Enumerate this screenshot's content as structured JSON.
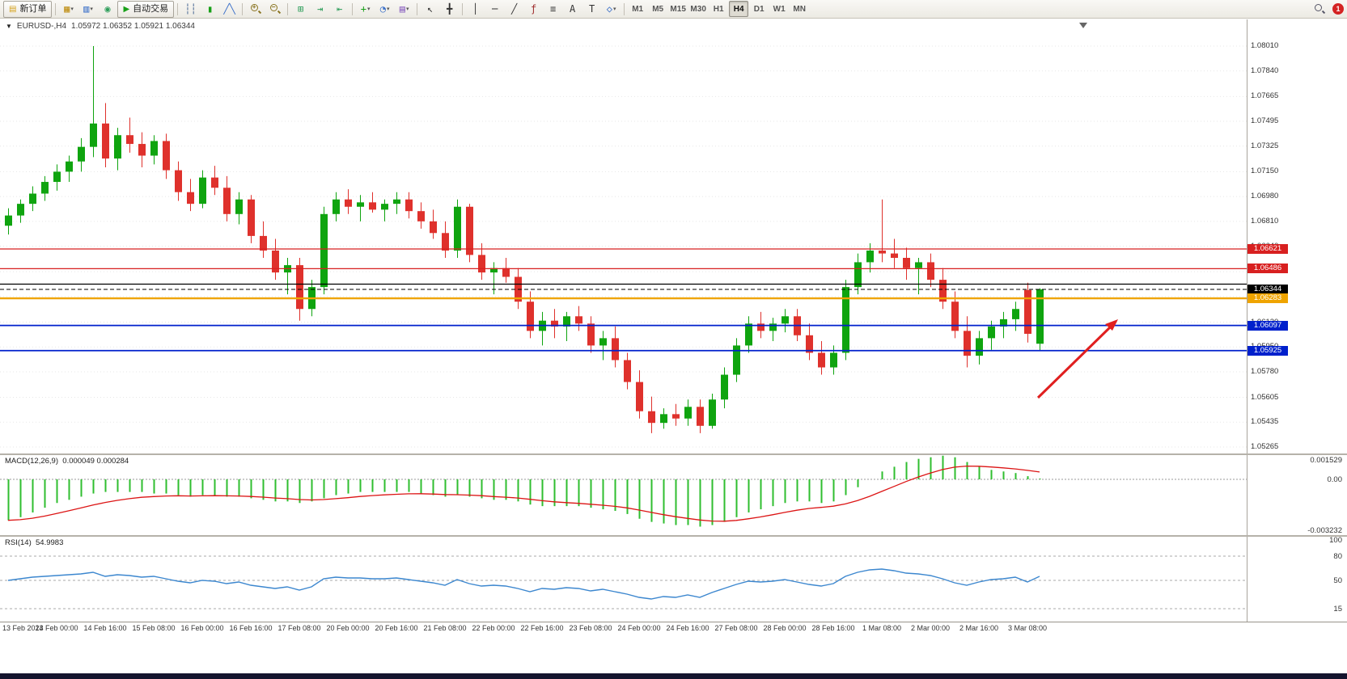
{
  "colors": {
    "up": "#0fa40f",
    "down": "#df312c",
    "macd_hist": "#2fbe2f",
    "macd_signal": "#dc1414",
    "rsi_line": "#3c87cf",
    "arrow": "#e01f1f",
    "lines": {
      "red": "#d82020",
      "black": "#000000",
      "orange": "#efa400",
      "blue": "#0020cc"
    }
  },
  "toolbar": {
    "items": [
      {
        "t": "button",
        "name": "new-order-button",
        "label": "新订单",
        "glyph": "▤",
        "color": "#d4a017"
      },
      {
        "t": "sep"
      },
      {
        "t": "icon",
        "name": "new-chart-icon",
        "glyph": "▦",
        "color": "#c09018",
        "caret": true
      },
      {
        "t": "icon",
        "name": "profiles-icon",
        "glyph": "▥",
        "color": "#3a6fc8",
        "caret": true
      },
      {
        "t": "icon",
        "name": "data-window-icon",
        "glyph": "◉",
        "color": "#2e9e5b"
      },
      {
        "t": "button",
        "name": "auto-trading-button",
        "label": "自动交易",
        "glyph": "▶",
        "color": "#18a018"
      },
      {
        "t": "sep"
      },
      {
        "t": "icon",
        "name": "bar-chart-icon",
        "glyph": "┆┆",
        "color": "#40618f"
      },
      {
        "t": "icon",
        "name": "candlestick-icon",
        "glyph": "▮",
        "color": "#18a018"
      },
      {
        "t": "icon",
        "name": "line-chart-icon",
        "glyph": "╱╲",
        "color": "#3a6fc8"
      },
      {
        "t": "sep"
      },
      {
        "t": "mag",
        "name": "zoom-in-icon",
        "sign": "+"
      },
      {
        "t": "mag",
        "name": "zoom-out-icon",
        "sign": "−"
      },
      {
        "t": "sep"
      },
      {
        "t": "icon",
        "name": "tile-windows-icon",
        "glyph": "⊞",
        "color": "#2e9e5b"
      },
      {
        "t": "icon",
        "name": "auto-scroll-icon",
        "glyph": "⇥",
        "color": "#2e9e5b"
      },
      {
        "t": "icon",
        "name": "chart-shift-icon",
        "glyph": "⇤",
        "color": "#2e9e5b"
      },
      {
        "t": "sep"
      },
      {
        "t": "icon",
        "name": "indicators-icon",
        "glyph": "+",
        "color": "#18a018",
        "caret": true
      },
      {
        "t": "icon",
        "name": "periods-icon",
        "glyph": "◔",
        "color": "#3a6fc8",
        "caret": true
      },
      {
        "t": "icon",
        "name": "templates-icon",
        "glyph": "▤",
        "color": "#8a62c0",
        "caret": true
      },
      {
        "t": "sep"
      },
      {
        "t": "icon",
        "name": "cursor-icon",
        "glyph": "↖",
        "color": "#333333"
      },
      {
        "t": "icon",
        "name": "crosshair-icon",
        "glyph": "╋",
        "color": "#333333"
      },
      {
        "t": "sep"
      },
      {
        "t": "icon",
        "name": "vertical-line-icon",
        "glyph": "│",
        "color": "#333333"
      },
      {
        "t": "icon",
        "name": "horizontal-line-icon",
        "glyph": "─",
        "color": "#333333"
      },
      {
        "t": "icon",
        "name": "trendline-icon",
        "glyph": "╱",
        "color": "#333333"
      },
      {
        "t": "icon",
        "name": "fibonacci-icon",
        "glyph": "ƒ",
        "color": "#a03030"
      },
      {
        "t": "icon",
        "name": "channels-icon",
        "glyph": "≡",
        "color": "#333333"
      },
      {
        "t": "icon",
        "name": "text-icon",
        "glyph": "A",
        "color": "#333333"
      },
      {
        "t": "icon",
        "name": "label-icon",
        "glyph": "T",
        "color": "#333333"
      },
      {
        "t": "icon",
        "name": "shapes-icon",
        "glyph": "◇",
        "color": "#3a6fc8",
        "caret": true
      },
      {
        "t": "sep"
      }
    ],
    "timeframes": [
      "M1",
      "M5",
      "M15",
      "M30",
      "H1",
      "H4",
      "D1",
      "W1",
      "MN"
    ],
    "active_timeframe": "H4",
    "notification_count": "1"
  },
  "chart": {
    "title_symbol": "EURUSD-,H4",
    "title_ohlc": "1.05972 1.06352 1.05921 1.06344",
    "price_axis_ticks": [
      "1.08010",
      "1.07840",
      "1.07665",
      "1.07495",
      "1.07325",
      "1.07150",
      "1.06980",
      "1.06810",
      "1.06640",
      "1.06465",
      "1.06295",
      "1.06120",
      "1.05950",
      "1.05780",
      "1.05605",
      "1.05435",
      "1.05265"
    ],
    "hlines": [
      {
        "price": 1.06621,
        "label": "1.06621",
        "color": "red",
        "width": 1.2
      },
      {
        "price": 1.06486,
        "label": "1.06486",
        "color": "red",
        "width": 1.2
      },
      {
        "price": 1.0638,
        "label": "",
        "color": "black",
        "width": 1.2
      },
      {
        "price": 1.06344,
        "label": "1.06344",
        "color": "black",
        "width": 1,
        "dashed": true
      },
      {
        "price": 1.06283,
        "label": "1.06283",
        "color": "orange",
        "width": 2.4
      },
      {
        "price": 1.06097,
        "label": "1.06097",
        "color": "blue",
        "width": 1.8
      },
      {
        "price": 1.05925,
        "label": "1.05925",
        "color": "blue",
        "width": 1.8
      }
    ],
    "time_labels": [
      "13 Feb 2023",
      "14 Feb 00:00",
      "14 Feb 16:00",
      "15 Feb 08:00",
      "16 Feb 00:00",
      "16 Feb 16:00",
      "17 Feb 08:00",
      "20 Feb 00:00",
      "20 Feb 16:00",
      "21 Feb 08:00",
      "22 Feb 00:00",
      "22 Feb 16:00",
      "23 Feb 08:00",
      "24 Feb 00:00",
      "24 Feb 16:00",
      "27 Feb 08:00",
      "28 Feb 00:00",
      "28 Feb 16:00",
      "1 Mar 08:00",
      "2 Mar 00:00",
      "2 Mar 16:00",
      "3 Mar 08:00"
    ],
    "candles": [
      [
        1.0678,
        1.069,
        1.0672,
        1.0685
      ],
      [
        1.0685,
        1.0696,
        1.068,
        1.0693
      ],
      [
        1.0693,
        1.0705,
        1.0688,
        1.07
      ],
      [
        1.07,
        1.0712,
        1.0695,
        1.0708
      ],
      [
        1.0708,
        1.072,
        1.0702,
        1.0715
      ],
      [
        1.0715,
        1.0726,
        1.0708,
        1.0722
      ],
      [
        1.0722,
        1.0738,
        1.0715,
        1.0732
      ],
      [
        1.0732,
        1.0801,
        1.0725,
        1.0748
      ],
      [
        1.0748,
        1.0762,
        1.0718,
        1.0724
      ],
      [
        1.0724,
        1.0745,
        1.0716,
        1.074
      ],
      [
        1.074,
        1.0752,
        1.0728,
        1.0734
      ],
      [
        1.0734,
        1.0742,
        1.0718,
        1.0726
      ],
      [
        1.0726,
        1.074,
        1.072,
        1.0736
      ],
      [
        1.0736,
        1.0741,
        1.071,
        1.0716
      ],
      [
        1.0716,
        1.0722,
        1.0695,
        1.0701
      ],
      [
        1.0701,
        1.071,
        1.0688,
        1.0693
      ],
      [
        1.0693,
        1.0716,
        1.069,
        1.0711
      ],
      [
        1.0711,
        1.0719,
        1.0699,
        1.0704
      ],
      [
        1.0704,
        1.0712,
        1.0681,
        1.0686
      ],
      [
        1.0686,
        1.0701,
        1.0679,
        1.0696
      ],
      [
        1.0696,
        1.0699,
        1.0666,
        1.0671
      ],
      [
        1.0671,
        1.0681,
        1.0656,
        1.0661
      ],
      [
        1.0661,
        1.0669,
        1.0641,
        1.0646
      ],
      [
        1.0646,
        1.0656,
        1.0631,
        1.0651
      ],
      [
        1.0651,
        1.0656,
        1.0613,
        1.0621
      ],
      [
        1.0621,
        1.0641,
        1.0616,
        1.0636
      ],
      [
        1.0636,
        1.0691,
        1.0631,
        1.0686
      ],
      [
        1.0686,
        1.0701,
        1.0681,
        1.0696
      ],
      [
        1.0696,
        1.0703,
        1.0686,
        1.0691
      ],
      [
        1.0691,
        1.0699,
        1.0681,
        1.0694
      ],
      [
        1.0694,
        1.0701,
        1.0687,
        1.0689
      ],
      [
        1.0689,
        1.0696,
        1.0681,
        1.0693
      ],
      [
        1.0693,
        1.0701,
        1.0686,
        1.0696
      ],
      [
        1.0696,
        1.0701,
        1.0683,
        1.0688
      ],
      [
        1.0688,
        1.0694,
        1.0676,
        1.0681
      ],
      [
        1.0681,
        1.0689,
        1.0669,
        1.0673
      ],
      [
        1.0673,
        1.0681,
        1.0656,
        1.0661
      ],
      [
        1.0661,
        1.0696,
        1.0656,
        1.0691
      ],
      [
        1.0691,
        1.0693,
        1.0653,
        1.0658
      ],
      [
        1.0658,
        1.0666,
        1.0641,
        1.0646
      ],
      [
        1.0646,
        1.0653,
        1.0631,
        1.0649
      ],
      [
        1.0649,
        1.0656,
        1.0639,
        1.0643
      ],
      [
        1.0643,
        1.0649,
        1.0621,
        1.0626
      ],
      [
        1.0626,
        1.0633,
        1.0601,
        1.0606
      ],
      [
        1.0606,
        1.0619,
        1.0596,
        1.0613
      ],
      [
        1.0613,
        1.0621,
        1.0601,
        1.0609
      ],
      [
        1.0609,
        1.0619,
        1.0599,
        1.0616
      ],
      [
        1.0616,
        1.0623,
        1.0606,
        1.0611
      ],
      [
        1.0611,
        1.0616,
        1.0591,
        1.0596
      ],
      [
        1.0596,
        1.0606,
        1.0586,
        1.0601
      ],
      [
        1.0601,
        1.0609,
        1.0581,
        1.0586
      ],
      [
        1.0586,
        1.0591,
        1.0566,
        1.0571
      ],
      [
        1.0571,
        1.0579,
        1.0546,
        1.0551
      ],
      [
        1.0551,
        1.0561,
        1.0536,
        1.0543
      ],
      [
        1.0543,
        1.0553,
        1.0539,
        1.0549
      ],
      [
        1.0549,
        1.0556,
        1.0541,
        1.0546
      ],
      [
        1.0546,
        1.0559,
        1.0541,
        1.0554
      ],
      [
        1.0554,
        1.0559,
        1.0536,
        1.0541
      ],
      [
        1.0541,
        1.0563,
        1.0539,
        1.0559
      ],
      [
        1.0559,
        1.0581,
        1.0553,
        1.0576
      ],
      [
        1.0576,
        1.0601,
        1.0571,
        1.0596
      ],
      [
        1.0596,
        1.0616,
        1.0591,
        1.0611
      ],
      [
        1.0611,
        1.0619,
        1.0601,
        1.0606
      ],
      [
        1.0606,
        1.0615,
        1.0599,
        1.0611
      ],
      [
        1.0611,
        1.0621,
        1.0605,
        1.0616
      ],
      [
        1.0616,
        1.0621,
        1.0599,
        1.0603
      ],
      [
        1.0603,
        1.0611,
        1.0586,
        1.0591
      ],
      [
        1.0591,
        1.0599,
        1.0576,
        1.0581
      ],
      [
        1.0581,
        1.0596,
        1.0576,
        1.0591
      ],
      [
        1.0591,
        1.0641,
        1.0586,
        1.0636
      ],
      [
        1.0636,
        1.0659,
        1.0631,
        1.0653
      ],
      [
        1.0653,
        1.0666,
        1.0646,
        1.0661
      ],
      [
        1.0661,
        1.0696,
        1.0653,
        1.0659
      ],
      [
        1.0659,
        1.0669,
        1.0649,
        1.0656
      ],
      [
        1.0656,
        1.0663,
        1.0641,
        1.0649
      ],
      [
        1.0649,
        1.0656,
        1.0631,
        1.0653
      ],
      [
        1.0653,
        1.0659,
        1.0636,
        1.0641
      ],
      [
        1.0641,
        1.0649,
        1.0621,
        1.0626
      ],
      [
        1.0626,
        1.0633,
        1.0601,
        1.0606
      ],
      [
        1.0606,
        1.0616,
        1.0581,
        1.0589
      ],
      [
        1.0589,
        1.0606,
        1.0583,
        1.0601
      ],
      [
        1.0601,
        1.0613,
        1.0593,
        1.0609
      ],
      [
        1.0609,
        1.0619,
        1.0601,
        1.0614
      ],
      [
        1.0614,
        1.0626,
        1.0606,
        1.0621
      ],
      [
        1.0634,
        1.0639,
        1.0598,
        1.0604
      ],
      [
        1.05972,
        1.06352,
        1.05921,
        1.06344
      ]
    ]
  },
  "macd": {
    "name": "MACD(12,26,9)",
    "values_text": "0.000049 0.000284",
    "axis_labels": [
      "0.001529",
      "0.00",
      "-0.003232"
    ],
    "values": [
      -0.0026,
      -0.0024,
      -0.0021,
      -0.0018,
      -0.0015,
      -0.0013,
      -0.0011,
      -0.0009,
      -0.0008,
      -0.0008,
      -0.0008,
      -0.0008,
      -0.0009,
      -0.0009,
      -0.001,
      -0.0011,
      -0.001,
      -0.001,
      -0.0011,
      -0.0011,
      -0.0012,
      -0.0013,
      -0.0014,
      -0.0014,
      -0.0015,
      -0.0014,
      -0.0012,
      -0.001,
      -0.0009,
      -0.0008,
      -0.0008,
      -0.0008,
      -0.0008,
      -0.0008,
      -0.0009,
      -0.001,
      -0.0011,
      -0.001,
      -0.0011,
      -0.0012,
      -0.0013,
      -0.0013,
      -0.0014,
      -0.0016,
      -0.0017,
      -0.0017,
      -0.0017,
      -0.0017,
      -0.0018,
      -0.0019,
      -0.002,
      -0.0022,
      -0.0025,
      -0.0027,
      -0.0028,
      -0.0029,
      -0.0029,
      -0.003,
      -0.0029,
      -0.0027,
      -0.0024,
      -0.0021,
      -0.0019,
      -0.0017,
      -0.0015,
      -0.0014,
      -0.0014,
      -0.0015,
      -0.0014,
      -0.001,
      -0.0005,
      0.0,
      0.0005,
      0.0008,
      0.0011,
      0.0013,
      0.0014,
      0.0015,
      0.0014,
      0.0011,
      0.0008,
      0.0006,
      0.0005,
      0.0004,
      0.0002,
      5e-05
    ]
  },
  "rsi": {
    "name": "RSI(14)",
    "value_text": "54.9983",
    "axis_labels": [
      "100",
      "80",
      "50",
      "15"
    ],
    "levels": [
      80,
      50,
      15
    ],
    "values": [
      50,
      52,
      54,
      55,
      56,
      57,
      58,
      60,
      55,
      57,
      56,
      54,
      55,
      52,
      49,
      47,
      50,
      49,
      46,
      48,
      44,
      42,
      40,
      42,
      38,
      42,
      52,
      54,
      53,
      53,
      52,
      52,
      53,
      51,
      49,
      47,
      44,
      51,
      46,
      43,
      44,
      43,
      40,
      36,
      40,
      39,
      41,
      40,
      37,
      39,
      36,
      33,
      29,
      27,
      30,
      29,
      32,
      29,
      35,
      40,
      45,
      49,
      48,
      49,
      51,
      48,
      45,
      43,
      46,
      55,
      60,
      63,
      64,
      62,
      59,
      58,
      56,
      52,
      47,
      44,
      48,
      51,
      52,
      54,
      48,
      55
    ]
  }
}
